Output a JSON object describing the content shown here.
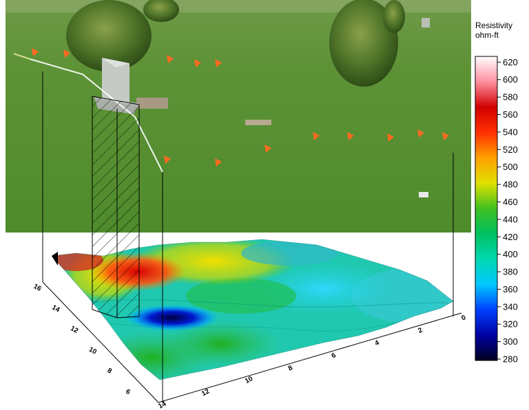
{
  "chart_data": {
    "type": "heatmap",
    "description_visible": "3D resistivity surface below a cemetery photograph",
    "colorbar": {
      "title_line1": "Resistivity",
      "title_line2": "ohm-ft",
      "ticks": [
        620,
        600,
        580,
        560,
        540,
        520,
        500,
        480,
        460,
        440,
        420,
        400,
        380,
        360,
        340,
        320,
        300,
        280
      ],
      "range": [
        280,
        625
      ],
      "colors": [
        "#000020",
        "#0000a0",
        "#0040ff",
        "#00c8ff",
        "#00d8b0",
        "#00c060",
        "#40c020",
        "#e0e000",
        "#ffa000",
        "#ff3000",
        "#d00000",
        "#ff90a0",
        "#ffffff"
      ]
    },
    "left_axis": {
      "ticks": [
        "16",
        "14",
        "12",
        "10",
        "8",
        "6"
      ]
    },
    "front_axis": {
      "ticks": [
        "14",
        "12",
        "10",
        "8",
        "6",
        "4",
        "2",
        "0"
      ]
    }
  }
}
